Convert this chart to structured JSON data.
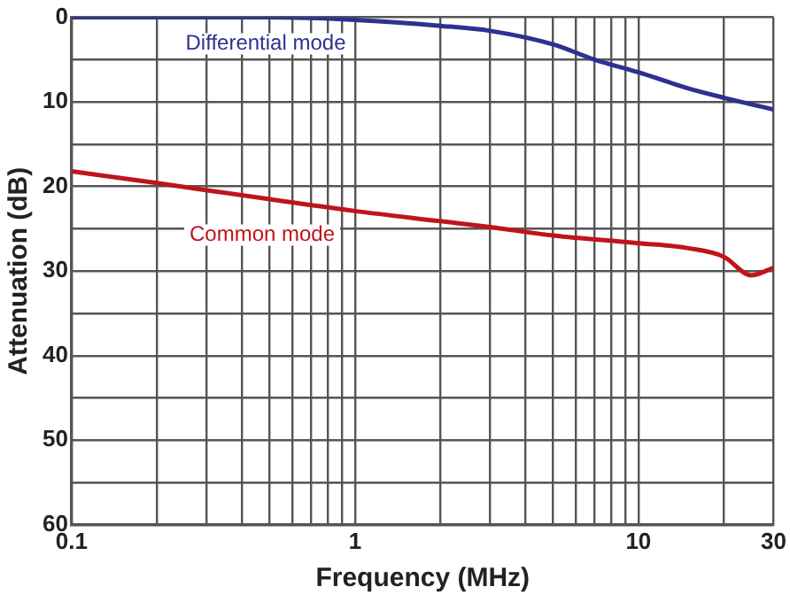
{
  "chart_data": {
    "type": "line",
    "xlabel": "Frequency (MHz)",
    "ylabel": "Attenuation (dB)",
    "log": "x",
    "grid": true,
    "legend": false,
    "marker": "none",
    "line_style": "solid",
    "xlim": [
      0.1,
      30
    ],
    "ylim": [
      60,
      0
    ],
    "xticks": [
      0.1,
      {
        "value": 0.2,
        "label": null
      },
      {
        "value": 0.3,
        "label": null
      },
      {
        "value": 0.4,
        "label": null
      },
      {
        "value": 0.5,
        "label": null
      },
      {
        "value": 0.6,
        "label": null
      },
      {
        "value": 0.7,
        "label": null
      },
      {
        "value": 0.8,
        "label": null
      },
      {
        "value": 0.9,
        "label": null
      },
      1,
      {
        "value": 2,
        "label": null
      },
      {
        "value": 3,
        "label": null
      },
      {
        "value": 4,
        "label": null
      },
      {
        "value": 5,
        "label": null
      },
      {
        "value": 6,
        "label": null
      },
      {
        "value": 7,
        "label": null
      },
      {
        "value": 8,
        "label": null
      },
      {
        "value": 9,
        "label": null
      },
      10,
      {
        "value": 20,
        "label": null
      },
      30
    ],
    "yticks": [
      0,
      {
        "value": 5,
        "label": null
      },
      10,
      {
        "value": 15,
        "label": null
      },
      20,
      {
        "value": 25,
        "label": null
      },
      30,
      {
        "value": 35,
        "label": null
      },
      40,
      {
        "value": 45,
        "label": null
      },
      50,
      {
        "value": 55,
        "label": null
      },
      60
    ],
    "series": [
      {
        "name": "Differential mode",
        "color": "#2e3192",
        "x": [
          0.1,
          0.3,
          0.5,
          1,
          2,
          3,
          5,
          7,
          10,
          15,
          20,
          30
        ],
        "values": [
          0,
          0,
          0,
          0.3,
          1,
          1.6,
          3.2,
          5,
          6.5,
          8.4,
          9.5,
          10.9
        ]
      },
      {
        "name": "Common mode",
        "color": "#c0141c",
        "x": [
          0.1,
          0.2,
          0.5,
          1,
          2,
          3,
          5,
          10,
          15,
          20,
          25,
          30
        ],
        "values": [
          18.2,
          19.6,
          21.5,
          22.9,
          24.1,
          24.8,
          25.8,
          26.7,
          27.3,
          28.3,
          30.5,
          29.6
        ]
      }
    ]
  }
}
